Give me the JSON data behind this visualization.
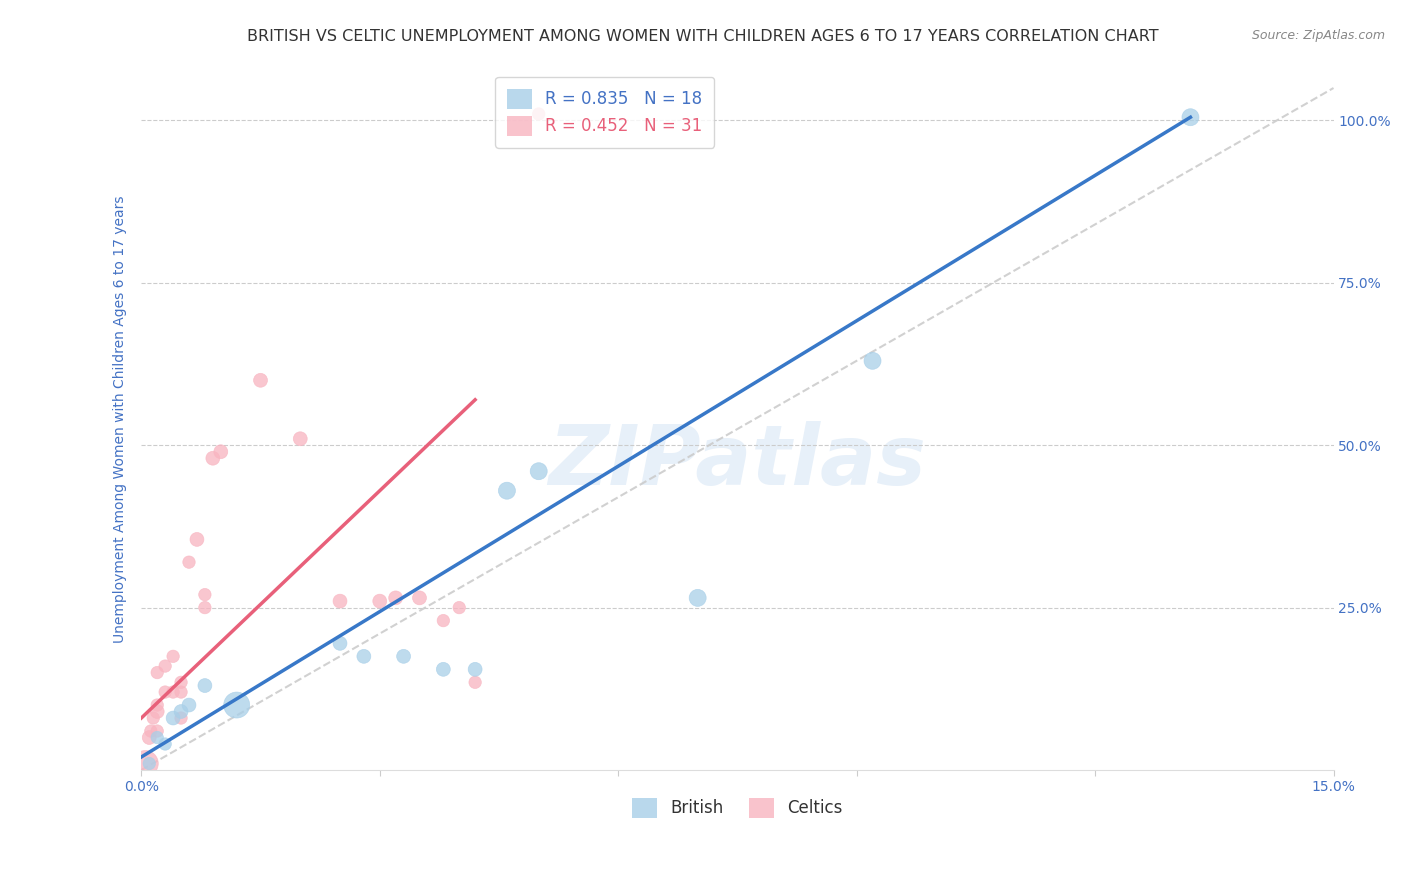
{
  "title": "BRITISH VS CELTIC UNEMPLOYMENT AMONG WOMEN WITH CHILDREN AGES 6 TO 17 YEARS CORRELATION CHART",
  "source": "Source: ZipAtlas.com",
  "ylabel": "Unemployment Among Women with Children Ages 6 to 17 years",
  "watermark": "ZIPatlas",
  "xlim": [
    0.0,
    0.15
  ],
  "ylim": [
    0.0,
    1.08
  ],
  "xticks": [
    0.0,
    0.03,
    0.06,
    0.09,
    0.12,
    0.15
  ],
  "xticklabels": [
    "0.0%",
    "",
    "",
    "",
    "",
    "15.0%"
  ],
  "yticks_right": [
    0.25,
    0.5,
    0.75,
    1.0
  ],
  "yticklabels_right": [
    "25.0%",
    "50.0%",
    "75.0%",
    "100.0%"
  ],
  "legend_british": "R = 0.835   N = 18",
  "legend_celtics": "R = 0.452   N = 31",
  "british_color": "#a8cfe8",
  "celtics_color": "#f8b4c0",
  "trend_british_color": "#3878c8",
  "trend_celtics_color": "#e8607a",
  "axis_color": "#4472c4",
  "grid_color": "#cccccc",
  "background_color": "#ffffff",
  "ref_line_color": "#cccccc",
  "title_color": "#333333",
  "source_color": "#888888",
  "title_fontsize": 11.5,
  "axis_label_fontsize": 10,
  "tick_fontsize": 10,
  "british_x": [
    0.001,
    0.002,
    0.003,
    0.004,
    0.005,
    0.006,
    0.008,
    0.012,
    0.025,
    0.028,
    0.033,
    0.038,
    0.042,
    0.046,
    0.05,
    0.07,
    0.092,
    0.132
  ],
  "british_y": [
    0.01,
    0.05,
    0.04,
    0.08,
    0.09,
    0.1,
    0.13,
    0.1,
    0.195,
    0.175,
    0.175,
    0.155,
    0.155,
    0.43,
    0.46,
    0.265,
    0.63,
    1.005
  ],
  "celtics_x": [
    0.0005,
    0.001,
    0.0012,
    0.0015,
    0.002,
    0.002,
    0.002,
    0.002,
    0.003,
    0.003,
    0.004,
    0.004,
    0.005,
    0.005,
    0.005,
    0.006,
    0.007,
    0.008,
    0.008,
    0.009,
    0.01,
    0.015,
    0.02,
    0.025,
    0.03,
    0.032,
    0.035,
    0.038,
    0.04,
    0.042,
    0.05
  ],
  "celtics_y": [
    0.01,
    0.05,
    0.06,
    0.08,
    0.06,
    0.09,
    0.1,
    0.15,
    0.12,
    0.16,
    0.12,
    0.175,
    0.08,
    0.12,
    0.135,
    0.32,
    0.355,
    0.25,
    0.27,
    0.48,
    0.49,
    0.6,
    0.51,
    0.26,
    0.26,
    0.265,
    0.265,
    0.23,
    0.25,
    0.135,
    1.01
  ],
  "british_sizes": [
    80,
    80,
    80,
    100,
    100,
    100,
    100,
    350,
    100,
    100,
    100,
    100,
    100,
    150,
    150,
    150,
    150,
    150
  ],
  "celtics_sizes": [
    350,
    100,
    80,
    80,
    80,
    100,
    80,
    80,
    80,
    80,
    80,
    80,
    80,
    80,
    80,
    80,
    100,
    80,
    80,
    100,
    100,
    100,
    100,
    100,
    100,
    100,
    100,
    80,
    80,
    80,
    80
  ],
  "trend_british_x1": 0.0,
  "trend_british_y1": 0.02,
  "trend_british_x2": 0.132,
  "trend_british_y2": 1.005,
  "trend_celtics_x1": 0.0,
  "trend_celtics_y1": 0.08,
  "trend_celtics_x2": 0.042,
  "trend_celtics_y2": 0.57
}
